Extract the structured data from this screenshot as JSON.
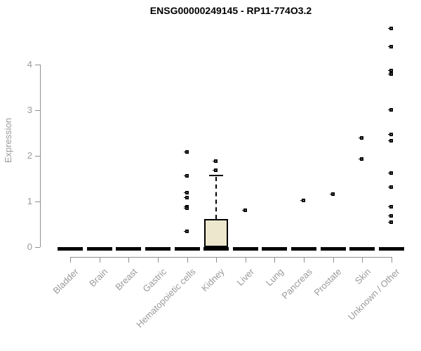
{
  "title": "ENSG00000249145 - RP11-774O3.2",
  "chart_data": {
    "type": "boxplot",
    "title": "ENSG00000249145 - RP11-774O3.2",
    "xlabel": "",
    "ylabel": "Expression",
    "ylim": [
      0,
      4
    ],
    "yticks": [
      0,
      1,
      2,
      3,
      4
    ],
    "grid": false,
    "legend": "none",
    "categories": [
      "Bladder",
      "Brain",
      "Breast",
      "Gastric",
      "Hematopoietic cells",
      "Kidney",
      "Liver",
      "Lung",
      "Pancreas",
      "Prostate",
      "Skin",
      "Unknown / Other"
    ],
    "series": [
      {
        "category": "Bladder",
        "median": 0,
        "q1": 0,
        "q3": 0,
        "whisker_low": 0,
        "whisker_high": 0,
        "outliers": []
      },
      {
        "category": "Brain",
        "median": 0,
        "q1": 0,
        "q3": 0,
        "whisker_low": 0,
        "whisker_high": 0,
        "outliers": []
      },
      {
        "category": "Breast",
        "median": 0,
        "q1": 0,
        "q3": 0,
        "whisker_low": 0,
        "whisker_high": 0,
        "outliers": []
      },
      {
        "category": "Gastric",
        "median": 0,
        "q1": 0,
        "q3": 0,
        "whisker_low": 0,
        "whisker_high": 0,
        "outliers": []
      },
      {
        "category": "Hematopoietic cells",
        "median": 0,
        "q1": 0,
        "q3": 0,
        "whisker_low": 0,
        "whisker_high": 0,
        "outliers": [
          2.07,
          1.55,
          1.19,
          1.07,
          0.87,
          0.84,
          0.34
        ]
      },
      {
        "category": "Kidney",
        "median": 0,
        "q1": 0,
        "q3": 0.62,
        "whisker_low": 0,
        "whisker_high": 1.57,
        "outliers": [
          1.88,
          1.68
        ]
      },
      {
        "category": "Liver",
        "median": 0,
        "q1": 0,
        "q3": 0,
        "whisker_low": 0,
        "whisker_high": 0,
        "outliers": [
          0.8
        ]
      },
      {
        "category": "Lung",
        "median": 0,
        "q1": 0,
        "q3": 0,
        "whisker_low": 0,
        "whisker_high": 0,
        "outliers": []
      },
      {
        "category": "Pancreas",
        "median": 0,
        "q1": 0,
        "q3": 0,
        "whisker_low": 0,
        "whisker_high": 0,
        "outliers": [
          1.02
        ]
      },
      {
        "category": "Prostate",
        "median": 0,
        "q1": 0,
        "q3": 0,
        "whisker_low": 0,
        "whisker_high": 0,
        "outliers": [
          1.16
        ]
      },
      {
        "category": "Skin",
        "median": 0,
        "q1": 0,
        "q3": 0,
        "whisker_low": 0,
        "whisker_high": 0,
        "outliers": [
          2.38,
          1.93
        ]
      },
      {
        "category": "Unknown / Other",
        "median": 0,
        "q1": 0,
        "q3": 0,
        "whisker_low": 0,
        "whisker_high": 0,
        "outliers": [
          4.79,
          4.39,
          3.86,
          3.78,
          3.0,
          2.46,
          2.32,
          1.61,
          1.31,
          0.88,
          0.68,
          0.54
        ]
      }
    ],
    "colors": {
      "box_fill": "#ece7cd",
      "box_border": "#000000",
      "median_bar": "#000000",
      "outlier": "#000000",
      "axis": "#8f8f8f",
      "tick_label": "#9a9a9a",
      "title": "#000000",
      "background": "#ffffff"
    }
  }
}
